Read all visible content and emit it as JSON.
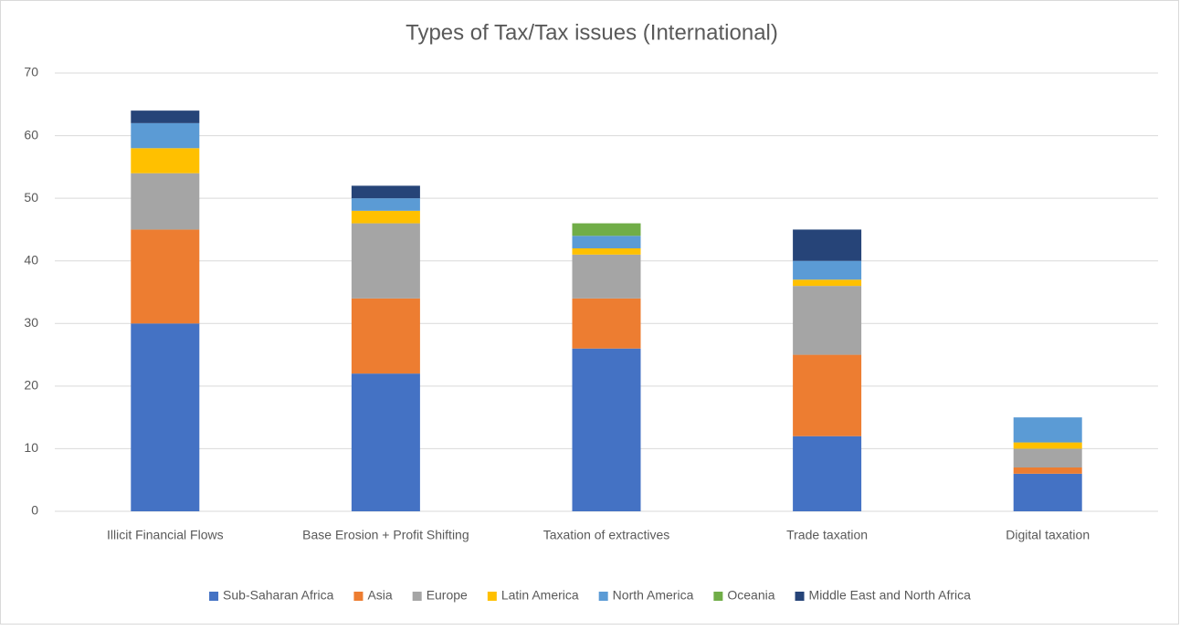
{
  "chart_data": {
    "type": "stacked_bar",
    "title": "Types of Tax/Tax issues (International)",
    "categories": [
      "Illicit Financial Flows",
      "Base Erosion + Profit Shifting",
      "Taxation of extractives",
      "Trade taxation",
      "Digital taxation"
    ],
    "series": [
      {
        "name": "Sub-Saharan Africa",
        "color": "#4472c4",
        "values": [
          30,
          22,
          26,
          12,
          6
        ]
      },
      {
        "name": "Asia",
        "color": "#ed7d31",
        "values": [
          15,
          12,
          8,
          13,
          1
        ]
      },
      {
        "name": "Europe",
        "color": "#a5a5a5",
        "values": [
          9,
          12,
          7,
          11,
          3
        ]
      },
      {
        "name": "Latin America",
        "color": "#ffc000",
        "values": [
          4,
          2,
          1,
          1,
          1
        ]
      },
      {
        "name": "North America",
        "color": "#5b9bd5",
        "values": [
          4,
          2,
          2,
          3,
          4
        ]
      },
      {
        "name": "Oceania",
        "color": "#70ad47",
        "values": [
          0,
          0,
          2,
          0,
          0
        ]
      },
      {
        "name": "Middle East and North Africa",
        "color": "#264478",
        "values": [
          2,
          2,
          0,
          5,
          0
        ]
      }
    ],
    "ylim": [
      0,
      70
    ],
    "yticks": [
      0,
      10,
      20,
      30,
      40,
      50,
      60,
      70
    ],
    "grid": true,
    "legend": "bottom"
  }
}
